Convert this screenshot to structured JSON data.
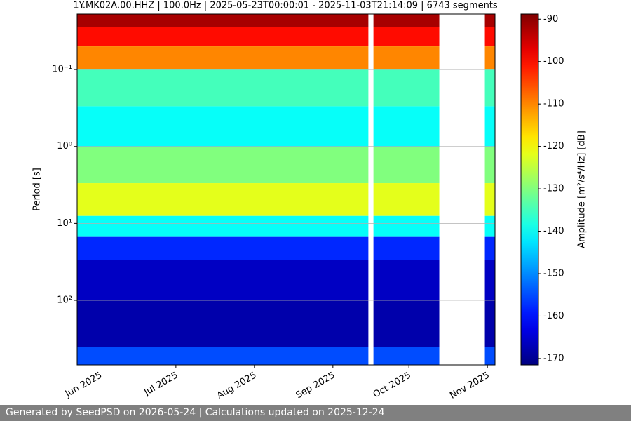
{
  "chart_data": {
    "type": "spectrogram",
    "title": "1Y.MK02A.00.HHZ | 100.0Hz | 2025-05-23T00:00:01 - 2025-11-03T21:14:09 | 6743 segments",
    "ylabel": "Period [s]",
    "colorbar_label": "Amplitude [m²/s⁴/Hz] [dB]",
    "colormap": "jet",
    "xlim": [
      "2025-05-23",
      "2025-11-04"
    ],
    "xticks": [
      {
        "value": "2025-06-01",
        "label": "Jun 2025"
      },
      {
        "value": "2025-07-01",
        "label": "Jul 2025"
      },
      {
        "value": "2025-08-01",
        "label": "Aug 2025"
      },
      {
        "value": "2025-09-01",
        "label": "Sep 2025"
      },
      {
        "value": "2025-10-01",
        "label": "Oct 2025"
      },
      {
        "value": "2025-11-01",
        "label": "Nov 2025"
      }
    ],
    "ylim": [
      0.019,
      690
    ],
    "y_inverted": true,
    "log_y": true,
    "yticks": [
      {
        "value": 0.1,
        "label": "10⁻¹"
      },
      {
        "value": 1,
        "label": "10⁰"
      },
      {
        "value": 10,
        "label": "10¹"
      },
      {
        "value": 100,
        "label": "10²"
      }
    ],
    "grid": true,
    "clim": [
      -171.5,
      -88.8
    ],
    "cticks": [
      -90,
      -100,
      -110,
      -120,
      -130,
      -140,
      -150,
      -160,
      -170
    ],
    "rows": [
      {
        "period": [
          0.019,
          0.028
        ],
        "amplitude": -92
      },
      {
        "period": [
          0.028,
          0.05
        ],
        "amplitude": -100
      },
      {
        "period": [
          0.05,
          0.1
        ],
        "amplitude": -110
      },
      {
        "period": [
          0.1,
          0.3
        ],
        "amplitude": -135
      },
      {
        "period": [
          0.3,
          1
        ],
        "amplitude": -140
      },
      {
        "period": [
          1,
          3
        ],
        "amplitude": -130
      },
      {
        "period": [
          3,
          8
        ],
        "amplitude": -122
      },
      {
        "period": [
          8,
          15
        ],
        "amplitude": -140
      },
      {
        "period": [
          15,
          30
        ],
        "amplitude": -158
      },
      {
        "period": [
          30,
          100
        ],
        "amplitude": -166
      },
      {
        "period": [
          100,
          400
        ],
        "amplitude": -168
      },
      {
        "period": [
          400,
          690
        ],
        "amplitude": -155
      }
    ],
    "gaps": [
      [
        "2025-09-15",
        "2025-09-17"
      ],
      [
        "2025-10-13",
        "2025-10-31"
      ]
    ]
  },
  "footer": "Generated by SeedPSD on 2026-05-24 | Calculations updated on 2025-12-24"
}
